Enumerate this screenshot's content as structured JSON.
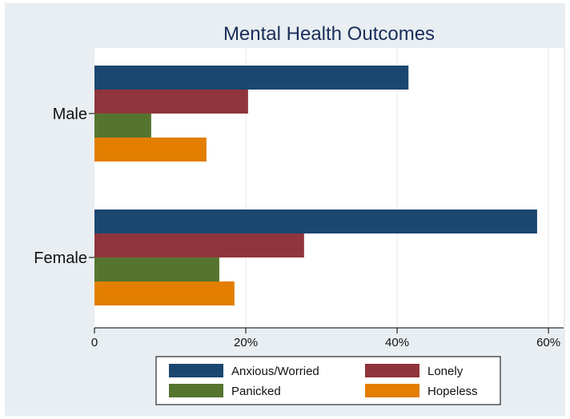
{
  "chart_data": {
    "type": "bar",
    "orientation": "horizontal",
    "title": "Mental Health Outcomes",
    "categories": [
      "Male",
      "Female"
    ],
    "series": [
      {
        "name": "Anxious/Worried",
        "values": [
          41.5,
          58.5
        ],
        "color": "#1a476f"
      },
      {
        "name": "Lonely",
        "values": [
          20.3,
          27.7
        ],
        "color": "#90353b"
      },
      {
        "name": "Panicked",
        "values": [
          7.5,
          16.5
        ],
        "color": "#55752f"
      },
      {
        "name": "Hopeless",
        "values": [
          14.8,
          18.5
        ],
        "color": "#e37e00"
      }
    ],
    "xlim": [
      0,
      62
    ],
    "xticks": [
      0,
      20,
      40,
      60
    ],
    "xtick_labels": [
      "0",
      "20%",
      "40%",
      "60%"
    ],
    "grid": "vertical",
    "legend_position": "bottom"
  }
}
